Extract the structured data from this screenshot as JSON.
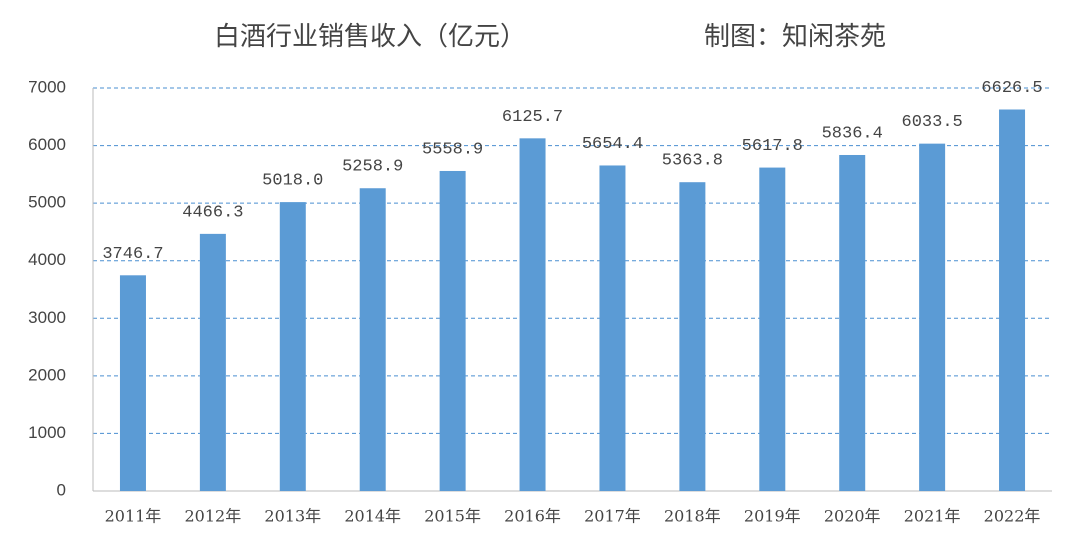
{
  "chart_data": {
    "type": "bar",
    "title": "白酒行业销售收入（亿元）",
    "credit": "制图：知闲茶苑",
    "categories": [
      "2011年",
      "2012年",
      "2013年",
      "2014年",
      "2015年",
      "2016年",
      "2017年",
      "2018年",
      "2019年",
      "2020年",
      "2021年",
      "2022年"
    ],
    "values": [
      3746.7,
      4466.3,
      5018.0,
      5258.9,
      5558.9,
      6125.7,
      5654.4,
      5363.8,
      5617.8,
      5836.4,
      6033.5,
      6626.5
    ],
    "value_labels": [
      "3746.7",
      "4466.3",
      "5018.0",
      "5258.9",
      "5558.9",
      "6125.7",
      "5654.4",
      "5363.8",
      "5617.8",
      "5836.4",
      "6033.5",
      "6626.5"
    ],
    "color": "#5b9bd5",
    "ylim": [
      0,
      7000
    ],
    "yticks": [
      0,
      1000,
      2000,
      3000,
      4000,
      5000,
      6000,
      7000
    ],
    "grid": true
  }
}
